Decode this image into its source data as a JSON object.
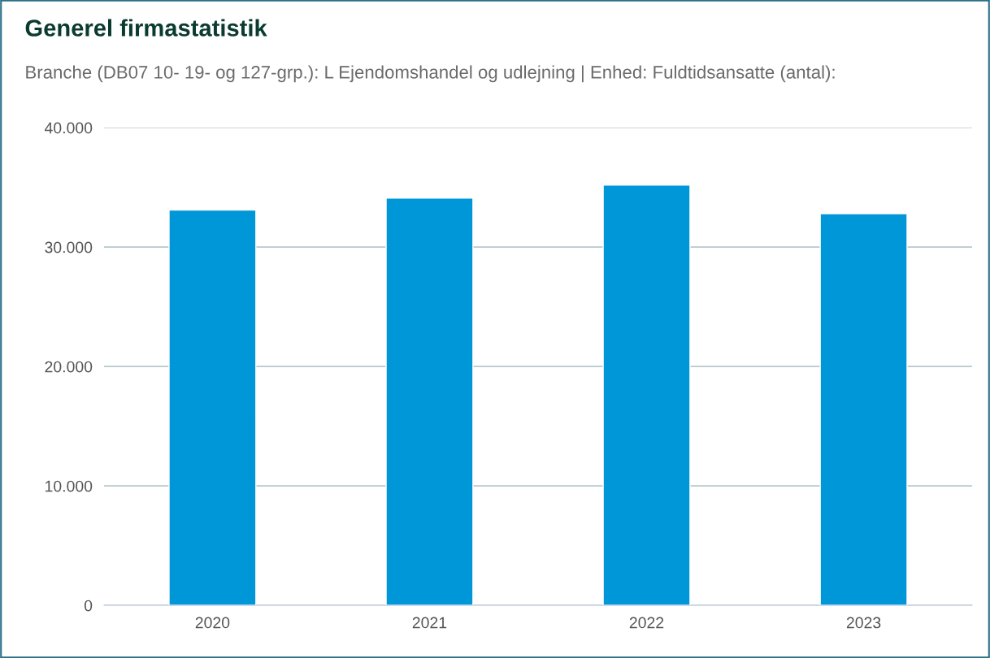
{
  "chart_data": {
    "type": "bar",
    "title": "Generel firmastatistik",
    "subtitle": "Branche (DB07 10- 19- og 127-grp.): L Ejendomshandel og udlejning | Enhed: Fuldtidsansatte (antal):",
    "categories": [
      "2020",
      "2021",
      "2022",
      "2023"
    ],
    "values": [
      33100,
      34100,
      35200,
      32800
    ],
    "color": "#0097d8",
    "ylim": [
      0,
      40000
    ],
    "yticks": [
      {
        "value": 0,
        "label": "0"
      },
      {
        "value": 10000,
        "label": "10.000"
      },
      {
        "value": 20000,
        "label": "20.000"
      },
      {
        "value": 30000,
        "label": "30.000"
      },
      {
        "value": 40000,
        "label": "40.000"
      }
    ],
    "grid": "y"
  }
}
